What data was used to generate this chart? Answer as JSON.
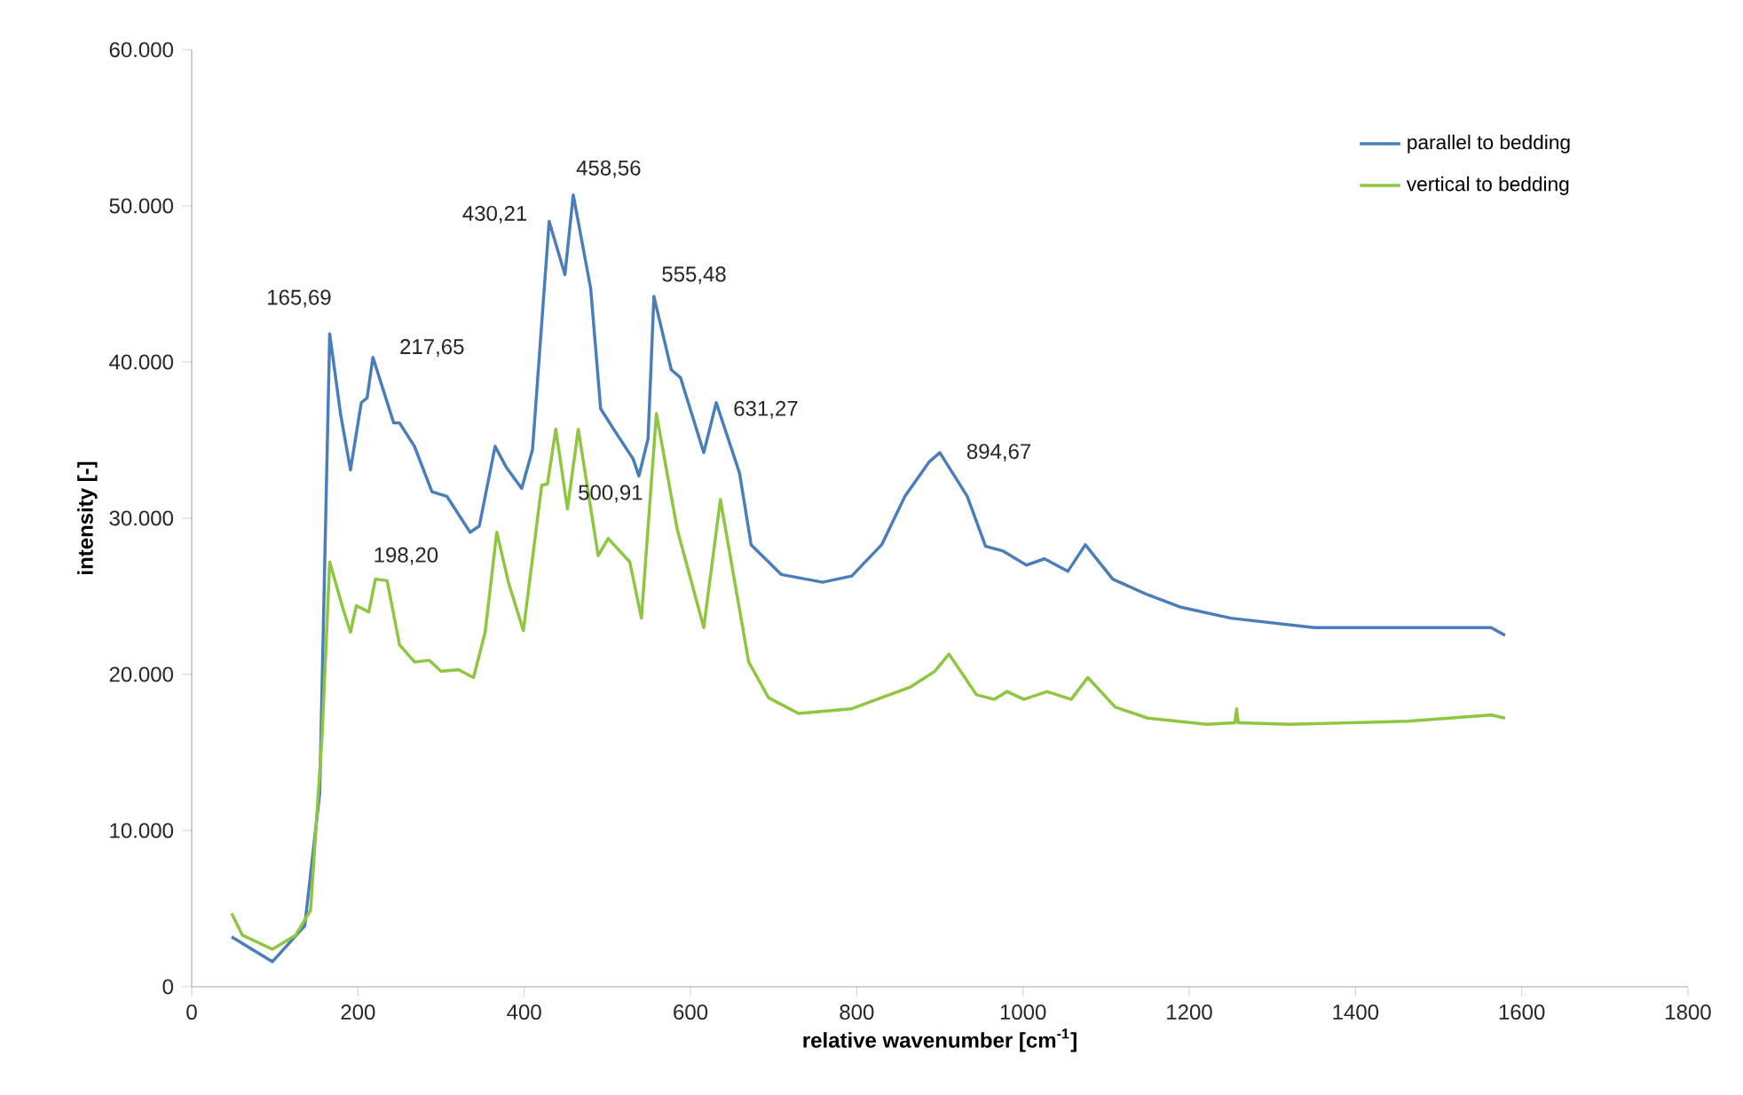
{
  "chart_data": {
    "type": "line",
    "xlabel": "relative wavenumber [cm$^{-1}$]",
    "ylabel": "intensity [-]",
    "xlim": [
      0,
      1800
    ],
    "xticks": [
      0,
      200,
      400,
      600,
      800,
      1000,
      1200,
      1400,
      1600,
      1800
    ],
    "ylim": [
      0,
      60000
    ],
    "yticks": [
      0,
      {
        "value": 10000,
        "label": "10.000"
      },
      {
        "value": 20000,
        "label": "20.000"
      },
      {
        "value": 30000,
        "label": "30.000"
      },
      {
        "value": 40000,
        "label": "40.000"
      },
      {
        "value": 50000,
        "label": "50.000"
      },
      {
        "value": 60000,
        "label": "60.000"
      }
    ],
    "grid": false,
    "legend": "top right",
    "series": [
      {
        "name": "parallel to bedding",
        "color": "#4a7ebb",
        "x": [
          48,
          97,
          136,
          154,
          166,
          179,
          191,
          204,
          211,
          218,
          243,
          250,
          268,
          289,
          307,
          335,
          346,
          365,
          378,
          397,
          410,
          430,
          449,
          459,
          480,
          492,
          510,
          531,
          538,
          549,
          556,
          577,
          588,
          616,
          631,
          659,
          673,
          709,
          759,
          794,
          830,
          858,
          887,
          900,
          933,
          955,
          976,
          1004,
          1026,
          1054,
          1075,
          1108,
          1150,
          1190,
          1250,
          1350,
          1478,
          1563,
          1580
        ],
        "values": [
          3200,
          1600,
          3900,
          12400,
          41800,
          36700,
          33100,
          37400,
          37700,
          40300,
          36100,
          36100,
          34600,
          31700,
          31400,
          29100,
          29500,
          34600,
          33300,
          31900,
          34400,
          49000,
          45600,
          50700,
          44700,
          37000,
          35500,
          33800,
          32700,
          35100,
          44200,
          39500,
          39000,
          34200,
          37400,
          32900,
          28300,
          26400,
          25900,
          26300,
          28300,
          31400,
          33600,
          34200,
          31400,
          28200,
          27900,
          27000,
          27400,
          26600,
          28300,
          26100,
          25100,
          24300,
          23600,
          23000,
          23000,
          23000,
          22500
        ]
      },
      {
        "name": "vertical to bedding",
        "color": "#8ec63f",
        "x": [
          48,
          61,
          97,
          125,
          143,
          157,
          166,
          182,
          191,
          198,
          213,
          221,
          235,
          250,
          268,
          286,
          300,
          321,
          339,
          353,
          367,
          381,
          399,
          421,
          428,
          438,
          452,
          465,
          489,
          501,
          527,
          541,
          559,
          584,
          616,
          636,
          670,
          694,
          730,
          794,
          865,
          894,
          911,
          944,
          965,
          981,
          1001,
          1029,
          1058,
          1078,
          1111,
          1150,
          1221,
          1255,
          1257,
          1259,
          1321,
          1463,
          1563,
          1580
        ],
        "values": [
          4700,
          3300,
          2400,
          3300,
          4900,
          16200,
          27200,
          24200,
          22700,
          24400,
          24000,
          26100,
          26000,
          21900,
          20800,
          20900,
          20200,
          20300,
          19800,
          22700,
          29100,
          25900,
          22800,
          32100,
          32200,
          35700,
          30600,
          35700,
          27600,
          28700,
          27200,
          23600,
          36700,
          29300,
          23000,
          31200,
          20800,
          18500,
          17500,
          17800,
          19200,
          20200,
          21300,
          18700,
          18400,
          18900,
          18400,
          18900,
          18400,
          19800,
          17900,
          17200,
          16800,
          16900,
          17800,
          16900,
          16800,
          17000,
          17400,
          17200
        ]
      }
    ],
    "annotations": [
      {
        "text": "165,69",
        "x": 166,
        "y": 41800
      },
      {
        "text": "217,65",
        "x": 218,
        "y": 40300
      },
      {
        "text": "430,21",
        "x": 430,
        "y": 49000
      },
      {
        "text": "458,56",
        "x": 459,
        "y": 50700
      },
      {
        "text": "555,48",
        "x": 556,
        "y": 44200
      },
      {
        "text": "631,27",
        "x": 631,
        "y": 37400
      },
      {
        "text": "894,67",
        "x": 900,
        "y": 34200
      },
      {
        "text": "198,20",
        "x": 198,
        "y": 24400
      },
      {
        "text": "500,91",
        "x": 501,
        "y": 28700
      }
    ]
  }
}
